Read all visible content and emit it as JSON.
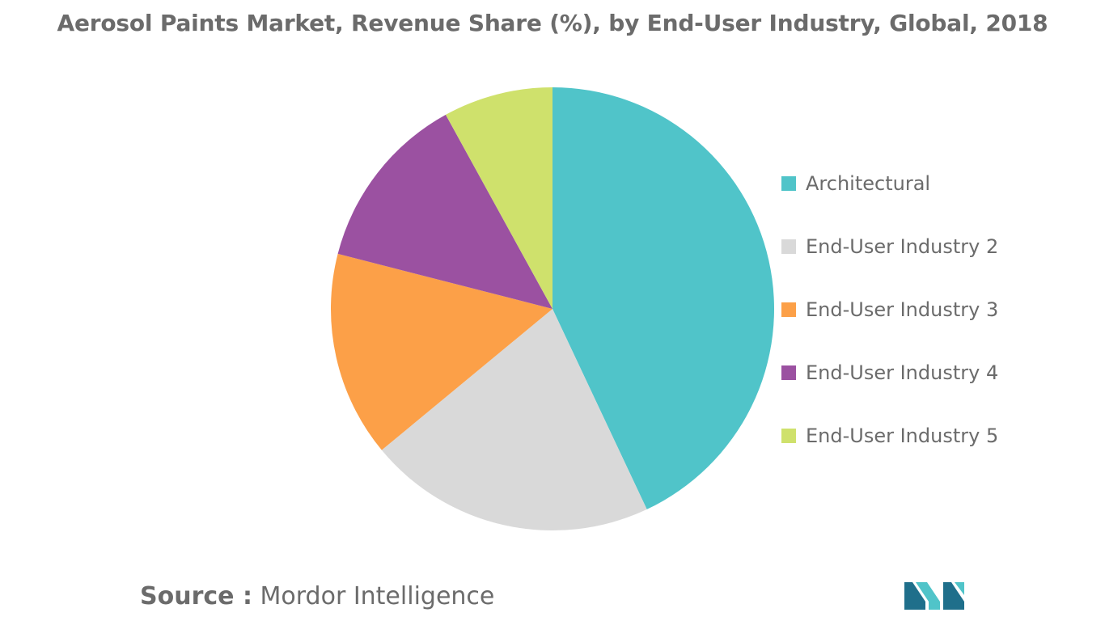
{
  "chart_data": {
    "type": "pie",
    "title": "Aerosol Paints Market, Revenue Share (%), by End-User Industry, Global, 2018",
    "categories": [
      "Architectural",
      "End-User Industry 2",
      "End-User Industry 3",
      "End-User Industry 4",
      "End-User Industry 5"
    ],
    "values": [
      43,
      21,
      15,
      13,
      8
    ],
    "colors": [
      "#50c4c9",
      "#d9d9d9",
      "#fca048",
      "#9b51a1",
      "#cfe16c"
    ],
    "legend_position": "right"
  },
  "source": {
    "label": "Source :",
    "name": "Mordor Intelligence"
  },
  "logo": {
    "icon": "mordor-intelligence-logo-icon",
    "colors": [
      "#1f6f8b",
      "#50c4c9"
    ]
  }
}
